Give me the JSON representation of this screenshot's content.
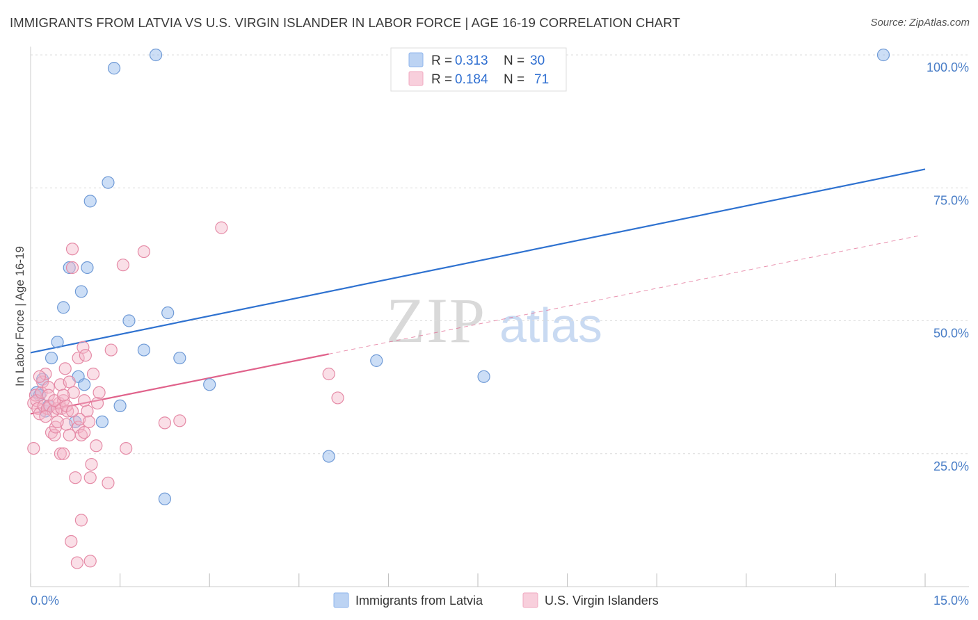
{
  "title": "IMMIGRANTS FROM LATVIA VS U.S. VIRGIN ISLANDER IN LABOR FORCE | AGE 16-19 CORRELATION CHART",
  "source": "Source: ZipAtlas.com",
  "watermark": {
    "zip": "ZIP",
    "atlas": "atlas"
  },
  "chart_data": {
    "type": "scatter",
    "ylabel": "In Labor Force | Age 16-19",
    "xlim": [
      0,
      15
    ],
    "ylim": [
      0,
      100
    ],
    "x_tick_labels": [
      "0.0%",
      "15.0%"
    ],
    "x_tick_values": [
      0,
      1.5,
      3,
      4.5,
      6,
      7.5,
      9,
      10.5,
      12,
      13.5,
      15
    ],
    "y_ticks": [
      {
        "value": 25,
        "label": "25.0%"
      },
      {
        "value": 50,
        "label": "50.0%"
      },
      {
        "value": 75,
        "label": "75.0%"
      },
      {
        "value": 100,
        "label": "100.0%"
      }
    ],
    "grid": "horizontal-dashed",
    "legend_top": [
      {
        "r_label": "R =",
        "r_value": "0.313",
        "n_label": "N =",
        "n_value": "30",
        "color": "#8fb6ec"
      },
      {
        "r_label": "R =",
        "r_value": "0.184",
        "n_label": "N =",
        "n_value": "71",
        "color": "#f1a9c0"
      }
    ],
    "series": [
      {
        "name": "Immigrants from Latvia",
        "color": "#8fb6ec",
        "stroke": "#6f9ad6",
        "trend_color": "#2f72d0",
        "trend": {
          "x0": 0,
          "y0": 44.0,
          "x1": 15,
          "y1": 78.5,
          "dashed_from": null
        },
        "points": [
          [
            0.1,
            36.5
          ],
          [
            0.15,
            36.0
          ],
          [
            0.2,
            39.0
          ],
          [
            0.25,
            33.0
          ],
          [
            0.3,
            34.0
          ],
          [
            0.35,
            43.0
          ],
          [
            0.45,
            46.0
          ],
          [
            0.55,
            52.5
          ],
          [
            0.65,
            60.0
          ],
          [
            0.75,
            31.0
          ],
          [
            0.8,
            39.5
          ],
          [
            0.85,
            55.5
          ],
          [
            0.9,
            38.0
          ],
          [
            0.95,
            60.0
          ],
          [
            1.0,
            72.5
          ],
          [
            1.2,
            31.0
          ],
          [
            1.3,
            76.0
          ],
          [
            1.4,
            97.5
          ],
          [
            1.5,
            34.0
          ],
          [
            1.65,
            50.0
          ],
          [
            1.9,
            44.5
          ],
          [
            2.1,
            100.0
          ],
          [
            2.25,
            16.5
          ],
          [
            2.3,
            51.5
          ],
          [
            2.5,
            43.0
          ],
          [
            3.0,
            38.0
          ],
          [
            5.0,
            24.5
          ],
          [
            5.8,
            42.5
          ],
          [
            7.6,
            39.5
          ],
          [
            14.3,
            100.0
          ]
        ]
      },
      {
        "name": "U.S. Virgin Islanders",
        "color": "#f4b7c9",
        "stroke": "#e58aa6",
        "trend_color": "#e0628b",
        "trend": {
          "x0": 0,
          "y0": 32.5,
          "x1": 14.9,
          "y1": 66.0,
          "dashed_from": 5.0
        },
        "points": [
          [
            0.05,
            26.0
          ],
          [
            0.05,
            34.5
          ],
          [
            0.08,
            36.0
          ],
          [
            0.1,
            35.0
          ],
          [
            0.12,
            33.5
          ],
          [
            0.15,
            32.5
          ],
          [
            0.18,
            36.5
          ],
          [
            0.2,
            38.5
          ],
          [
            0.22,
            34.0
          ],
          [
            0.25,
            40.0
          ],
          [
            0.28,
            33.5
          ],
          [
            0.3,
            37.5
          ],
          [
            0.32,
            34.0
          ],
          [
            0.35,
            29.0
          ],
          [
            0.38,
            33.0
          ],
          [
            0.4,
            28.5
          ],
          [
            0.42,
            30.0
          ],
          [
            0.45,
            33.5
          ],
          [
            0.48,
            34.5
          ],
          [
            0.5,
            38.0
          ],
          [
            0.5,
            25.0
          ],
          [
            0.52,
            33.5
          ],
          [
            0.55,
            25.0
          ],
          [
            0.55,
            35.0
          ],
          [
            0.58,
            41.0
          ],
          [
            0.6,
            30.5
          ],
          [
            0.62,
            33.0
          ],
          [
            0.65,
            38.5
          ],
          [
            0.65,
            28.5
          ],
          [
            0.68,
            8.5
          ],
          [
            0.7,
            63.5
          ],
          [
            0.7,
            60.0
          ],
          [
            0.72,
            36.5
          ],
          [
            0.75,
            20.5
          ],
          [
            0.78,
            4.5
          ],
          [
            0.8,
            43.0
          ],
          [
            0.8,
            30.0
          ],
          [
            0.82,
            31.5
          ],
          [
            0.85,
            28.5
          ],
          [
            0.85,
            12.5
          ],
          [
            0.88,
            45.0
          ],
          [
            0.9,
            29.0
          ],
          [
            0.92,
            43.5
          ],
          [
            0.95,
            33.0
          ],
          [
            0.98,
            31.0
          ],
          [
            1.0,
            20.5
          ],
          [
            1.0,
            4.8
          ],
          [
            1.02,
            23.0
          ],
          [
            1.05,
            40.0
          ],
          [
            1.1,
            26.5
          ],
          [
            1.12,
            34.5
          ],
          [
            1.15,
            36.5
          ],
          [
            1.3,
            19.5
          ],
          [
            1.35,
            44.5
          ],
          [
            1.55,
            60.5
          ],
          [
            1.6,
            26.0
          ],
          [
            1.9,
            63.0
          ],
          [
            2.25,
            30.8
          ],
          [
            2.5,
            31.2
          ],
          [
            3.2,
            67.5
          ],
          [
            5.0,
            40.0
          ],
          [
            5.15,
            35.5
          ],
          [
            0.3,
            36.0
          ],
          [
            0.4,
            35.0
          ],
          [
            0.6,
            34.0
          ],
          [
            0.15,
            39.5
          ],
          [
            0.45,
            31.0
          ],
          [
            0.7,
            33.0
          ],
          [
            0.9,
            35.0
          ],
          [
            0.25,
            32.0
          ],
          [
            0.55,
            36.0
          ]
        ]
      }
    ]
  }
}
